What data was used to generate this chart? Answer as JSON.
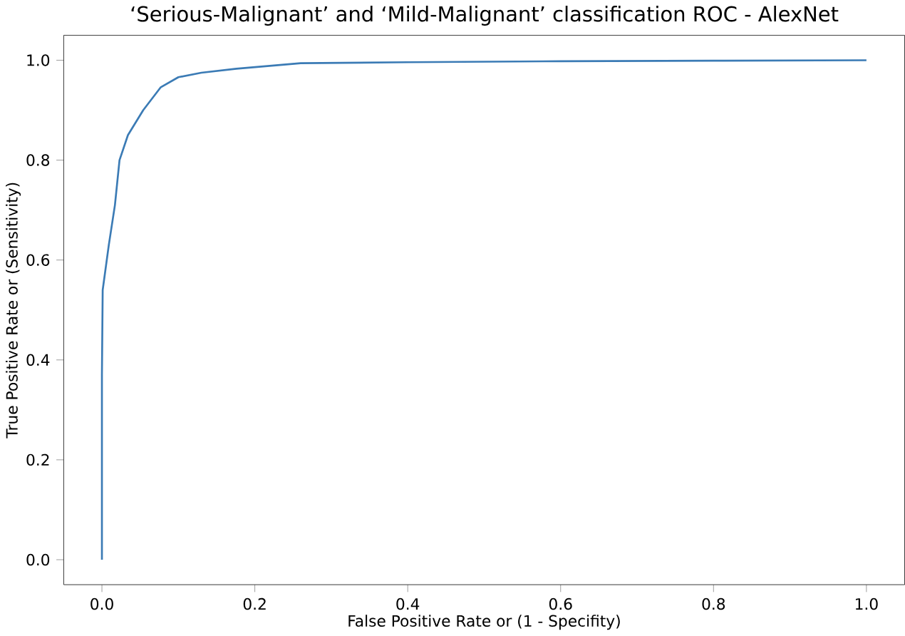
{
  "chart_data": {
    "type": "line",
    "title": "‘Serious-Malignant’ and ‘Mild-Malignant’ classification ROC - AlexNet",
    "xlabel": "False Positive Rate or (1 - Specifity)",
    "ylabel": "True Positive Rate or (Sensitivity)",
    "x": [
      0,
      0,
      0.001,
      0.009,
      0.017,
      0.023,
      0.034,
      0.054,
      0.077,
      0.1,
      0.13,
      0.176,
      0.26,
      0.4,
      0.6,
      0.8,
      1.0
    ],
    "series": [
      {
        "color": "#3b7bb5",
        "values": [
          0,
          0.37,
          0.54,
          0.63,
          0.71,
          0.8,
          0.85,
          0.9,
          0.946,
          0.966,
          0.975,
          0.983,
          0.994,
          0.996,
          0.998,
          0.999,
          1.0
        ]
      }
    ],
    "xlim": [
      -0.05,
      1.05
    ],
    "ylim": [
      -0.05,
      1.05
    ],
    "xticks": [
      {
        "value": 0,
        "label": "0.0"
      },
      0.2,
      0.4,
      0.6,
      0.8,
      {
        "value": 1,
        "label": "1.0"
      }
    ],
    "yticks": [
      {
        "value": 0,
        "label": "0.0"
      },
      0.2,
      0.4,
      0.6,
      0.8,
      {
        "value": 1,
        "label": "1.0"
      }
    ],
    "grid": false,
    "marker": "none",
    "line_style": "solid"
  }
}
